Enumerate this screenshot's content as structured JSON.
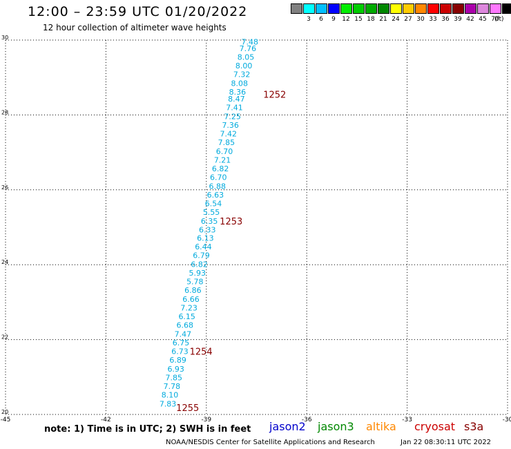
{
  "header": {
    "title": "12:00 – 23:59 UTC 01/20/2022",
    "subtitle": "12 hour collection of altimeter wave heights"
  },
  "legend": {
    "unit": "(ft)",
    "entries": [
      {
        "label": "",
        "color": "#808080"
      },
      {
        "label": "3",
        "color": "#00ffff"
      },
      {
        "label": "6",
        "color": "#00bfff"
      },
      {
        "label": "9",
        "color": "#0000ff"
      },
      {
        "label": "12",
        "color": "#00ee00"
      },
      {
        "label": "15",
        "color": "#00cc00"
      },
      {
        "label": "18",
        "color": "#00aa00"
      },
      {
        "label": "21",
        "color": "#008800"
      },
      {
        "label": "24",
        "color": "#ffff00"
      },
      {
        "label": "27",
        "color": "#ffcc00"
      },
      {
        "label": "30",
        "color": "#ff8800"
      },
      {
        "label": "33",
        "color": "#ff0000"
      },
      {
        "label": "36",
        "color": "#cc0000"
      },
      {
        "label": "39",
        "color": "#880000"
      },
      {
        "label": "42",
        "color": "#aa00aa"
      },
      {
        "label": "45",
        "color": "#dd88dd"
      },
      {
        "label": "70",
        "color": "#ff77ff"
      },
      {
        "label": "",
        "color": "#000000"
      }
    ]
  },
  "chart_data": {
    "type": "scatter",
    "xlim": [
      -45,
      -30
    ],
    "ylim": [
      20,
      30
    ],
    "xticks": [
      "-45",
      "-42",
      "-39",
      "-36",
      "-33",
      "-30"
    ],
    "yticks": [
      "20",
      "22",
      "24",
      "26",
      "28",
      "30"
    ],
    "grid": true,
    "point_color": "#00aadd",
    "time_color": "#880000",
    "points": [
      {
        "lon": -37.7,
        "lat": 29.95,
        "swh": "7.48"
      },
      {
        "lon": -37.76,
        "lat": 29.78,
        "swh": "7.76"
      },
      {
        "lon": -37.82,
        "lat": 29.55,
        "swh": "8.05"
      },
      {
        "lon": -37.88,
        "lat": 29.32,
        "swh": "8.00"
      },
      {
        "lon": -37.94,
        "lat": 29.09,
        "swh": "7.32"
      },
      {
        "lon": -38.01,
        "lat": 28.85,
        "swh": "8.08"
      },
      {
        "lon": -38.07,
        "lat": 28.62,
        "swh": "8.36"
      },
      {
        "lon": -38.1,
        "lat": 28.43,
        "swh": "8.47"
      },
      {
        "lon": -38.16,
        "lat": 28.2,
        "swh": "7.41"
      },
      {
        "lon": -38.22,
        "lat": 27.96,
        "swh": "7.25"
      },
      {
        "lon": -38.28,
        "lat": 27.73,
        "swh": "7.36"
      },
      {
        "lon": -38.34,
        "lat": 27.5,
        "swh": "7.42"
      },
      {
        "lon": -38.4,
        "lat": 27.27,
        "swh": "7.85"
      },
      {
        "lon": -38.46,
        "lat": 27.03,
        "swh": "6.70"
      },
      {
        "lon": -38.52,
        "lat": 26.8,
        "swh": "7.21"
      },
      {
        "lon": -38.58,
        "lat": 26.57,
        "swh": "6.82"
      },
      {
        "lon": -38.64,
        "lat": 26.34,
        "swh": "6.70"
      },
      {
        "lon": -38.67,
        "lat": 26.1,
        "swh": "6.88"
      },
      {
        "lon": -38.73,
        "lat": 25.87,
        "swh": "6.63"
      },
      {
        "lon": -38.79,
        "lat": 25.64,
        "swh": "6.54"
      },
      {
        "lon": -38.85,
        "lat": 25.41,
        "swh": "5.55"
      },
      {
        "lon": -38.91,
        "lat": 25.17,
        "swh": "6.35"
      },
      {
        "lon": -38.97,
        "lat": 24.94,
        "swh": "6.33"
      },
      {
        "lon": -39.03,
        "lat": 24.71,
        "swh": "6.13"
      },
      {
        "lon": -39.09,
        "lat": 24.48,
        "swh": "6.44"
      },
      {
        "lon": -39.15,
        "lat": 24.25,
        "swh": "6.79"
      },
      {
        "lon": -39.21,
        "lat": 24.01,
        "swh": "6.82"
      },
      {
        "lon": -39.27,
        "lat": 23.78,
        "swh": "5.93"
      },
      {
        "lon": -39.34,
        "lat": 23.55,
        "swh": "5.78"
      },
      {
        "lon": -39.4,
        "lat": 23.32,
        "swh": "6.86"
      },
      {
        "lon": -39.46,
        "lat": 23.08,
        "swh": "6.66"
      },
      {
        "lon": -39.52,
        "lat": 22.85,
        "swh": "7.23"
      },
      {
        "lon": -39.58,
        "lat": 22.62,
        "swh": "6.15"
      },
      {
        "lon": -39.64,
        "lat": 22.39,
        "swh": "6.68"
      },
      {
        "lon": -39.7,
        "lat": 22.15,
        "swh": "7.47"
      },
      {
        "lon": -39.76,
        "lat": 21.92,
        "swh": "6.75"
      },
      {
        "lon": -39.79,
        "lat": 21.69,
        "swh": "6.73"
      },
      {
        "lon": -39.85,
        "lat": 21.46,
        "swh": "6.89"
      },
      {
        "lon": -39.91,
        "lat": 21.22,
        "swh": "6.93"
      },
      {
        "lon": -39.97,
        "lat": 20.99,
        "swh": "7.85"
      },
      {
        "lon": -40.03,
        "lat": 20.76,
        "swh": "7.78"
      },
      {
        "lon": -40.09,
        "lat": 20.53,
        "swh": "8.10"
      },
      {
        "lon": -40.15,
        "lat": 20.29,
        "swh": "7.83"
      }
    ],
    "time_labels": [
      {
        "text": "1252",
        "lon": -37.3,
        "lat": 28.55
      },
      {
        "text": "1253",
        "lon": -38.6,
        "lat": 25.17
      },
      {
        "text": "1254",
        "lon": -39.5,
        "lat": 21.69
      },
      {
        "text": "1255",
        "lon": -39.9,
        "lat": 20.18
      }
    ]
  },
  "footer": {
    "note": "note: 1) Time is in UTC; 2) SWH is in feet",
    "missions": [
      {
        "label": "jason2",
        "color": "#0000cc"
      },
      {
        "label": "jason3",
        "color": "#008800"
      },
      {
        "label": "altika",
        "color": "#ff8800"
      },
      {
        "label": "cryosat",
        "color": "#cc0000"
      },
      {
        "label": "s3a",
        "color": "#880000"
      }
    ],
    "credit": "NOAA/NESDIS Center for Satellite Applications and Research",
    "timestamp": "Jan 22 08:30:11 UTC 2022"
  }
}
